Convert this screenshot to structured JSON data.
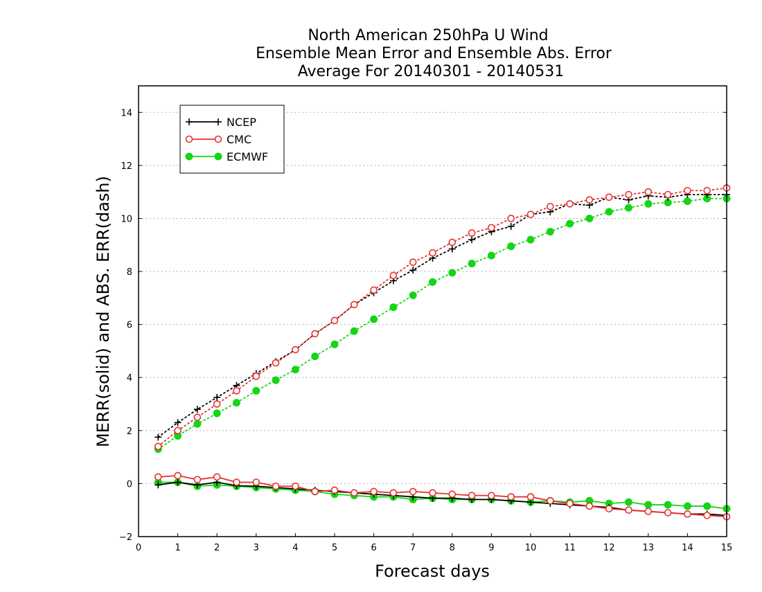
{
  "chart_data": {
    "type": "line",
    "title": [
      "North American 250hPa U Wind",
      "Ensemble Mean Error and Ensemble Abs. Error",
      "Average For 20140301 - 20140531"
    ],
    "xlabel": "Forecast days",
    "ylabel": "MERR(solid) and ABS. ERR(dash)",
    "xlim": [
      0,
      15
    ],
    "ylim": [
      -2,
      15
    ],
    "xticks": [
      0,
      1,
      2,
      3,
      4,
      5,
      6,
      7,
      8,
      9,
      10,
      11,
      12,
      13,
      14,
      15
    ],
    "yticks": [
      -2,
      0,
      2,
      4,
      6,
      8,
      10,
      12,
      14
    ],
    "grid": "dotted, horizontal",
    "legend_position": "top-left",
    "x": [
      0.5,
      1,
      1.5,
      2,
      2.5,
      3,
      3.5,
      4,
      4.5,
      5,
      5.5,
      6,
      6.5,
      7,
      7.5,
      8,
      8.5,
      9,
      9.5,
      10,
      10.5,
      11,
      11.5,
      12,
      12.5,
      13,
      13.5,
      14,
      14.5,
      15
    ],
    "series": [
      {
        "name": "NCEP",
        "color": "#000000",
        "marker": "plus",
        "merr": [
          -0.05,
          0.05,
          -0.05,
          0.05,
          -0.08,
          -0.1,
          -0.15,
          -0.2,
          -0.25,
          -0.3,
          -0.35,
          -0.4,
          -0.45,
          -0.5,
          -0.55,
          -0.55,
          -0.6,
          -0.6,
          -0.65,
          -0.7,
          -0.75,
          -0.8,
          -0.85,
          -0.9,
          -1.0,
          -1.05,
          -1.1,
          -1.15,
          -1.15,
          -1.2
        ],
        "abs_err": [
          1.75,
          2.3,
          2.8,
          3.25,
          3.7,
          4.15,
          4.6,
          5.05,
          5.65,
          6.15,
          6.75,
          7.2,
          7.65,
          8.05,
          8.5,
          8.85,
          9.2,
          9.5,
          9.7,
          10.15,
          10.25,
          10.55,
          10.5,
          10.8,
          10.7,
          10.85,
          10.8,
          10.9,
          10.9,
          10.9
        ]
      },
      {
        "name": "CMC",
        "color": "#e83030",
        "marker": "open-circle",
        "merr": [
          0.25,
          0.3,
          0.15,
          0.25,
          0.05,
          0.05,
          -0.1,
          -0.1,
          -0.3,
          -0.25,
          -0.35,
          -0.3,
          -0.35,
          -0.3,
          -0.35,
          -0.4,
          -0.45,
          -0.45,
          -0.5,
          -0.5,
          -0.65,
          -0.75,
          -0.85,
          -0.95,
          -1.0,
          -1.05,
          -1.1,
          -1.15,
          -1.2,
          -1.25
        ],
        "abs_err": [
          1.4,
          2.0,
          2.5,
          3.0,
          3.5,
          4.05,
          4.55,
          5.05,
          5.65,
          6.15,
          6.75,
          7.3,
          7.85,
          8.35,
          8.7,
          9.1,
          9.45,
          9.65,
          10.0,
          10.15,
          10.45,
          10.55,
          10.7,
          10.8,
          10.9,
          11.0,
          10.9,
          11.05,
          11.05,
          11.15
        ]
      },
      {
        "name": "ECMWF",
        "color": "#16d416",
        "marker": "filled-circle",
        "merr": [
          0.05,
          0.05,
          -0.1,
          -0.05,
          -0.1,
          -0.15,
          -0.2,
          -0.25,
          -0.3,
          -0.4,
          -0.45,
          -0.5,
          -0.5,
          -0.6,
          -0.55,
          -0.6,
          -0.6,
          -0.6,
          -0.65,
          -0.7,
          -0.65,
          -0.7,
          -0.65,
          -0.75,
          -0.7,
          -0.8,
          -0.8,
          -0.85,
          -0.85,
          -0.95
        ],
        "abs_err": [
          1.3,
          1.8,
          2.25,
          2.65,
          3.05,
          3.5,
          3.9,
          4.3,
          4.8,
          5.25,
          5.75,
          6.2,
          6.65,
          7.1,
          7.6,
          7.95,
          8.3,
          8.6,
          8.95,
          9.2,
          9.5,
          9.8,
          10.0,
          10.25,
          10.4,
          10.55,
          10.6,
          10.65,
          10.75,
          10.75
        ]
      }
    ]
  }
}
